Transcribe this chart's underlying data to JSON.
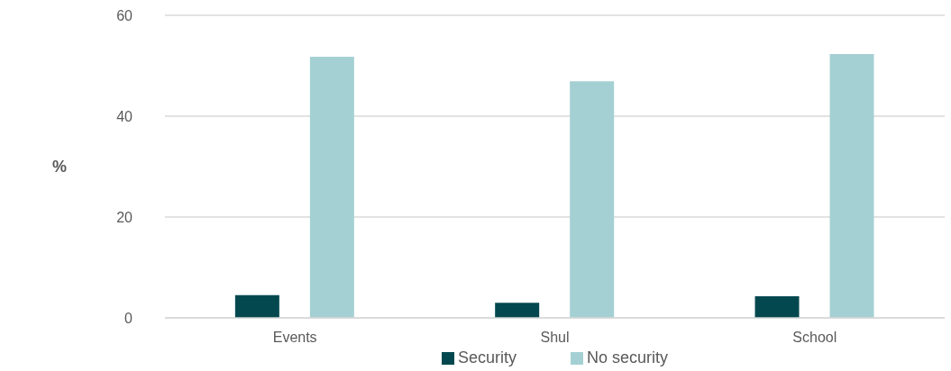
{
  "chart_data": {
    "type": "bar",
    "ylabel": "%",
    "categories": [
      "Events",
      "Shul",
      "School"
    ],
    "series": [
      {
        "name": "Security",
        "color": "#03484f",
        "values": [
          4.5,
          3.0,
          4.3
        ]
      },
      {
        "name": "No security",
        "color": "#a5d0d3",
        "values": [
          51.8,
          46.9,
          52.3
        ]
      }
    ],
    "ylim": [
      0,
      60
    ],
    "yticks": [
      0,
      20,
      40,
      60
    ],
    "grid": "y",
    "legend": "bottom"
  }
}
